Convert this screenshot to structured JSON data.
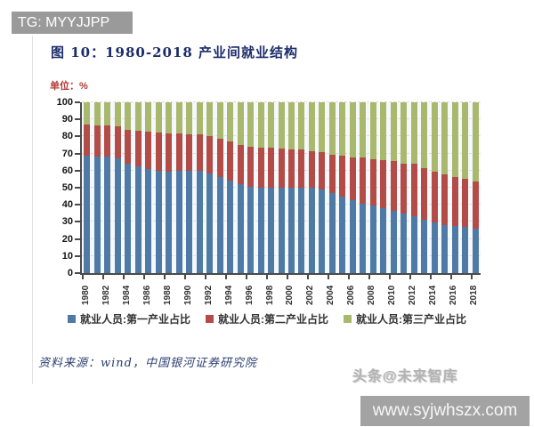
{
  "banner": {
    "text": "TG: MYYJJPP"
  },
  "figure": {
    "title": "图 10：1980-2018 产业间就业结构",
    "unit": "单位：%",
    "source": "资料来源：wind，中国银河证券研究院"
  },
  "watermark": {
    "text": "头条@未来智库"
  },
  "footer_banner": {
    "text": "www.syjwhszx.com"
  },
  "chart_data": {
    "type": "bar",
    "stacked": true,
    "title": "图 10：1980-2018 产业间就业结构",
    "ylabel": "单位：%",
    "ylim": [
      0,
      100
    ],
    "y_ticks": [
      0,
      10,
      20,
      30,
      40,
      50,
      60,
      70,
      80,
      90,
      100
    ],
    "grid": "horizontal-dashed",
    "legend_position": "bottom",
    "years": [
      1980,
      1981,
      1982,
      1983,
      1984,
      1985,
      1986,
      1987,
      1988,
      1989,
      1990,
      1991,
      1992,
      1993,
      1994,
      1995,
      1996,
      1997,
      1998,
      1999,
      2000,
      2001,
      2002,
      2003,
      2004,
      2005,
      2006,
      2007,
      2008,
      2009,
      2010,
      2011,
      2012,
      2013,
      2014,
      2015,
      2016,
      2017,
      2018
    ],
    "x_tick_labels": [
      "1980",
      "1982",
      "1984",
      "1986",
      "1988",
      "1990",
      "1992",
      "1994",
      "1996",
      "1998",
      "2000",
      "2002",
      "2004",
      "2006",
      "2008",
      "2010",
      "2012",
      "2014",
      "2016",
      "2018"
    ],
    "series": [
      {
        "name": "就业人员:第一产业占比",
        "color": "#4f7aa6",
        "values": [
          68.7,
          68.1,
          68.1,
          67.1,
          64.0,
          62.4,
          60.9,
          60.0,
          59.3,
          60.1,
          60.1,
          59.7,
          58.5,
          56.4,
          54.3,
          52.2,
          50.5,
          49.9,
          49.8,
          50.1,
          50.0,
          50.0,
          50.0,
          49.1,
          46.9,
          44.8,
          42.6,
          40.8,
          39.6,
          38.1,
          36.7,
          34.8,
          33.6,
          31.4,
          29.5,
          28.3,
          27.7,
          27.0,
          26.1
        ]
      },
      {
        "name": "就业人员:第二产业占比",
        "color": "#b34b47",
        "values": [
          18.2,
          18.3,
          18.4,
          18.7,
          19.9,
          20.8,
          21.9,
          22.2,
          22.4,
          21.6,
          21.4,
          21.4,
          21.7,
          22.4,
          22.7,
          23.0,
          23.5,
          23.7,
          23.5,
          23.0,
          22.5,
          22.3,
          21.4,
          21.6,
          22.5,
          23.8,
          25.2,
          26.8,
          27.2,
          27.8,
          28.7,
          29.5,
          30.3,
          30.1,
          29.9,
          29.3,
          28.8,
          28.1,
          27.6
        ]
      },
      {
        "name": "就业人员:第三产业占比",
        "color": "#a9b86c",
        "values": [
          13.1,
          13.6,
          13.5,
          14.2,
          16.1,
          16.8,
          17.2,
          17.8,
          18.3,
          18.3,
          18.5,
          18.9,
          19.8,
          21.2,
          23.0,
          24.8,
          26.0,
          26.4,
          26.7,
          26.9,
          27.5,
          27.7,
          28.6,
          29.3,
          30.6,
          31.4,
          32.2,
          32.4,
          33.2,
          34.1,
          34.6,
          35.7,
          36.1,
          38.5,
          40.6,
          42.4,
          43.5,
          44.9,
          46.3
        ]
      }
    ]
  }
}
